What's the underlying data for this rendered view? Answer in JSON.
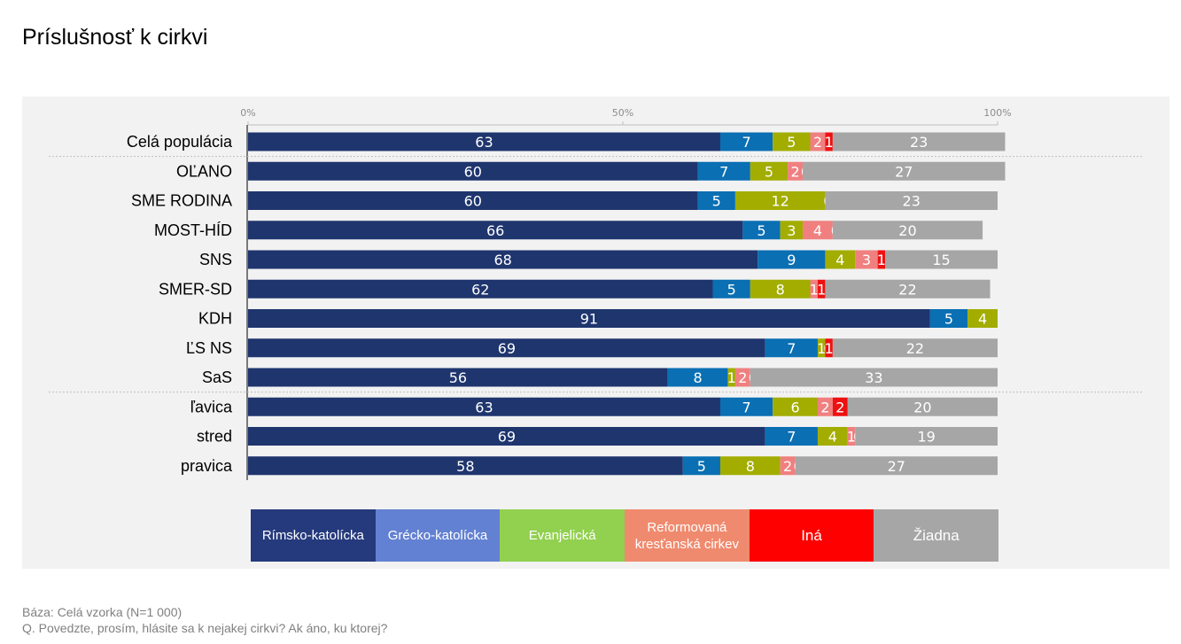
{
  "title": "Príslušnosť k cirkvi",
  "footer": {
    "base": "Báza: Celá vzorka (N=1 000)",
    "question": "Q. Povedzte, prosím, hlásite sa k nejakej cirkvi? Ak áno, ku ktorej?"
  },
  "chart_data": {
    "type": "bar",
    "orientation": "horizontal",
    "stacked": true,
    "x_ticks": [
      "0%",
      "50%",
      "100%"
    ],
    "xlim": [
      0,
      100
    ],
    "categories": [
      "Celá populácia",
      "OĽANO",
      "SME RODINA",
      "MOST-HÍD",
      "SNS",
      "SMER-SD",
      "KDH",
      "ĽS NS",
      "SaS",
      "ľavica",
      "stred",
      "pravica"
    ],
    "series": [
      {
        "name": "Rímsko-katolícka",
        "color": "#1f356e",
        "values": [
          63,
          60,
          60,
          66,
          68,
          62,
          91,
          69,
          56,
          63,
          69,
          58
        ]
      },
      {
        "name": "Grécko-katolícka",
        "color": "#0a6fb3",
        "values": [
          7,
          7,
          5,
          5,
          9,
          5,
          5,
          7,
          8,
          7,
          7,
          5
        ]
      },
      {
        "name": "Evanjelická",
        "color": "#a2ad00",
        "values": [
          5,
          5,
          12,
          3,
          4,
          8,
          4,
          1,
          1,
          6,
          4,
          8
        ]
      },
      {
        "name": "Reformovaná kresťanská cirkev",
        "color": "#f08080",
        "values": [
          2,
          2,
          0,
          4,
          3,
          1,
          0,
          0,
          2,
          2,
          1,
          2
        ]
      },
      {
        "name": "Iná",
        "color": "#ee1111",
        "values": [
          1,
          0,
          0,
          0,
          1,
          1,
          0,
          1,
          0,
          2,
          0,
          0
        ]
      },
      {
        "name": "Žiadna",
        "color": "#a6a6a6",
        "values": [
          23,
          27,
          23,
          20,
          15,
          22,
          0,
          22,
          33,
          20,
          19,
          27
        ]
      }
    ],
    "legend": {
      "position": "bottom",
      "colors": [
        "#253a7c",
        "#6381d2",
        "#92d050",
        "#f08a6e",
        "#ff0000",
        "#a6a6a6"
      ]
    },
    "separators_after": [
      "Celá populácia",
      "SaS"
    ],
    "label_color": "#ffffff"
  }
}
